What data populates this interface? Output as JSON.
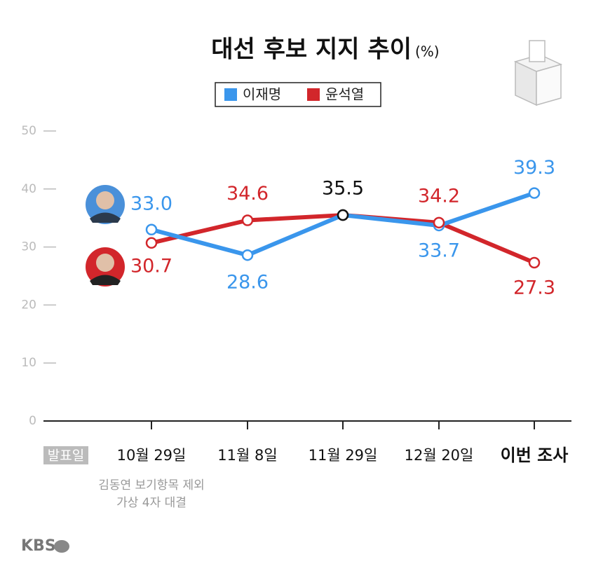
{
  "chart_data": {
    "type": "line",
    "title": "대선 후보 지지 추이",
    "title_suffix": "(%)",
    "categories": [
      "10월 29일",
      "11월 8일",
      "11월 29일",
      "12월 20일",
      "이번 조사"
    ],
    "series": [
      {
        "name": "이재명",
        "color": "#3a96ec",
        "values": [
          33.0,
          28.6,
          35.5,
          33.7,
          39.3
        ],
        "value_labels": [
          "33.0",
          "28.6",
          "35.5",
          "33.7",
          "39.3"
        ]
      },
      {
        "name": "윤석열",
        "color": "#d2262b",
        "values": [
          30.7,
          34.6,
          35.5,
          34.2,
          27.3
        ],
        "value_labels": [
          "30.7",
          "34.6",
          null,
          "34.2",
          "27.3"
        ]
      }
    ],
    "ylim": [
      0,
      50
    ],
    "yticks": [
      0,
      10,
      20,
      30,
      40,
      50
    ],
    "x_label": "발표일",
    "notes": [
      "김동연 보기항목 제외",
      "가상 4자 대결"
    ],
    "logo": "KBS"
  }
}
